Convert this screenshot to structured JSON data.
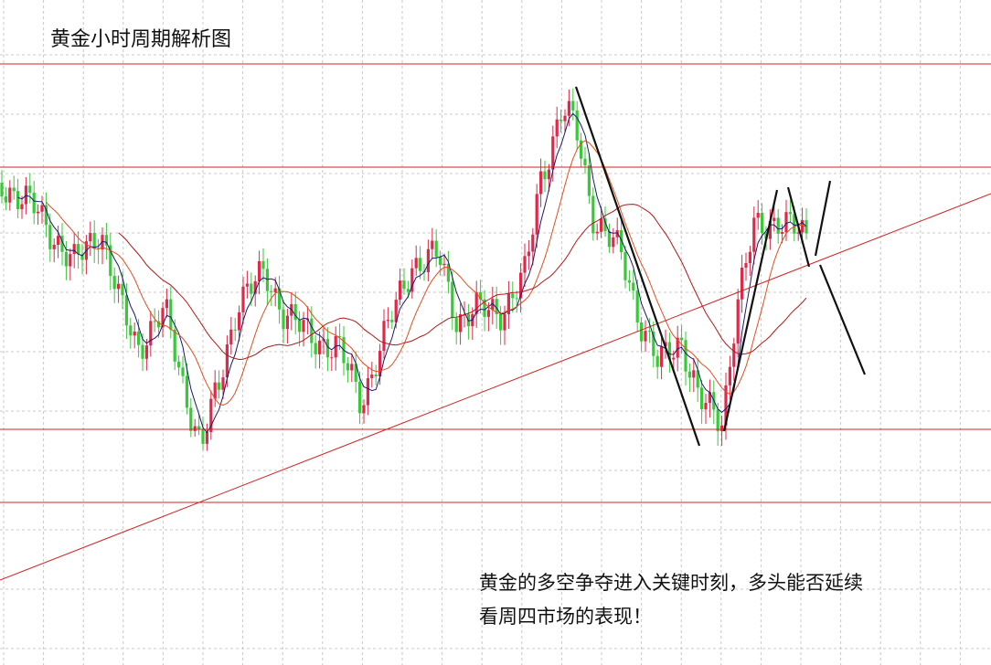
{
  "header": {
    "title": "黄金小时周期解析图"
  },
  "caption": {
    "lines": [
      "黄金的多空争夺进入关键时刻，多头能否延续",
      "看周四市场的表现！"
    ]
  }
}
